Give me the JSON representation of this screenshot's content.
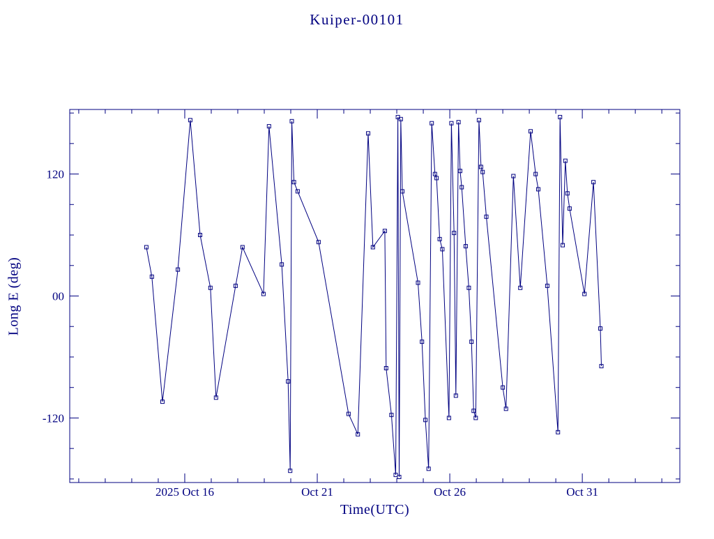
{
  "window": {
    "background": "#ffffff"
  },
  "chart_data": {
    "type": "line",
    "title": "Kuiper-00101",
    "xlabel": "Time(UTC)",
    "ylabel": "Long E (deg)",
    "color": "#000080",
    "marker": "open-square",
    "grid": false,
    "legend": "none",
    "x_unit": "day of 2025 October (UTC)",
    "xlim": [
      11.66,
      34.68
    ],
    "ylim": [
      -183.5,
      183.5
    ],
    "x_ticks": [
      {
        "pos": 16,
        "label": "2025 Oct 16"
      },
      {
        "pos": 21,
        "label": "Oct 21"
      },
      {
        "pos": 26,
        "label": "Oct 26"
      },
      {
        "pos": 31,
        "label": "Oct 31"
      }
    ],
    "x_minor_step_days": 1,
    "y_ticks": [
      {
        "pos": -120,
        "label": "-120"
      },
      {
        "pos": 0,
        "label": "00"
      },
      {
        "pos": 120,
        "label": "120"
      }
    ],
    "y_minor_step": 30,
    "points": [
      [
        14.55,
        48
      ],
      [
        14.76,
        19
      ],
      [
        15.16,
        -104
      ],
      [
        15.74,
        26
      ],
      [
        16.21,
        173
      ],
      [
        16.58,
        60
      ],
      [
        16.97,
        8
      ],
      [
        17.18,
        -100
      ],
      [
        17.92,
        10
      ],
      [
        18.18,
        48
      ],
      [
        18.97,
        2
      ],
      [
        19.18,
        167
      ],
      [
        19.66,
        31
      ],
      [
        19.9,
        -84
      ],
      [
        19.98,
        -172
      ],
      [
        20.04,
        172
      ],
      [
        20.12,
        112
      ],
      [
        20.26,
        103
      ],
      [
        21.05,
        53
      ],
      [
        22.18,
        -116
      ],
      [
        22.53,
        -136
      ],
      [
        22.92,
        160
      ],
      [
        23.1,
        48
      ],
      [
        23.55,
        64
      ],
      [
        23.6,
        -71
      ],
      [
        23.8,
        -117
      ],
      [
        23.96,
        -176
      ],
      [
        24.04,
        176
      ],
      [
        24.09,
        -178
      ],
      [
        24.15,
        174
      ],
      [
        24.21,
        103
      ],
      [
        24.8,
        13
      ],
      [
        24.95,
        -45
      ],
      [
        25.08,
        -122
      ],
      [
        25.2,
        -170
      ],
      [
        25.32,
        170
      ],
      [
        25.44,
        120
      ],
      [
        25.5,
        116
      ],
      [
        25.62,
        56
      ],
      [
        25.72,
        46
      ],
      [
        25.97,
        -120
      ],
      [
        26.06,
        170
      ],
      [
        26.16,
        62
      ],
      [
        26.23,
        -98
      ],
      [
        26.33,
        171
      ],
      [
        26.39,
        123
      ],
      [
        26.45,
        107
      ],
      [
        26.6,
        49
      ],
      [
        26.72,
        8
      ],
      [
        26.82,
        -45
      ],
      [
        26.9,
        -113
      ],
      [
        26.98,
        -120
      ],
      [
        27.1,
        173
      ],
      [
        27.18,
        127
      ],
      [
        27.24,
        122
      ],
      [
        27.38,
        78
      ],
      [
        28.0,
        -90
      ],
      [
        28.12,
        -111
      ],
      [
        28.4,
        118
      ],
      [
        28.66,
        8
      ],
      [
        29.05,
        162
      ],
      [
        29.24,
        120
      ],
      [
        29.34,
        105
      ],
      [
        29.68,
        10
      ],
      [
        30.08,
        -134
      ],
      [
        30.16,
        176
      ],
      [
        30.26,
        50
      ],
      [
        30.36,
        133
      ],
      [
        30.44,
        101
      ],
      [
        30.52,
        86
      ],
      [
        31.08,
        2
      ],
      [
        31.42,
        112
      ],
      [
        31.68,
        -32
      ],
      [
        31.72,
        -69
      ]
    ]
  }
}
